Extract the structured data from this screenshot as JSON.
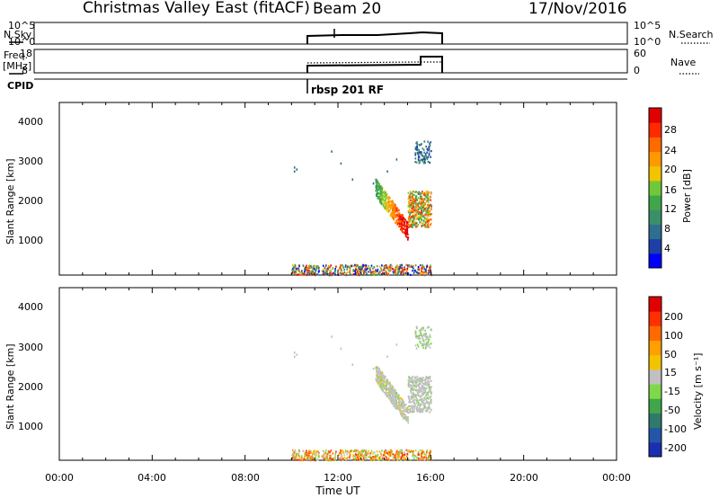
{
  "header": {
    "site": "Christmas Valley East (fitACF)",
    "beam": "Beam 20",
    "date": "17/Nov/2016"
  },
  "noise_panel": {
    "left_label": "N.Sky",
    "right_label": "N.Search",
    "ticks_left": [
      "10^5",
      "10^0"
    ],
    "ticks_right": [
      "10^5",
      "10^0"
    ]
  },
  "freq_panel": {
    "left_label_top": "Freq.",
    "left_label_unit": "[MHz]",
    "right_label": "Nave",
    "ticks_left": [
      "18",
      "8"
    ],
    "ticks_right": [
      "60",
      "0"
    ]
  },
  "cpid": {
    "label": "CPID",
    "program": "rbsp 201 RF"
  },
  "power_panel": {
    "ylabel": "Slant Range [km]",
    "yticks": [
      "4000",
      "3000",
      "2000",
      "1000"
    ],
    "colorbar_label": "Power [dB]",
    "colorbar_ticks": [
      "28",
      "24",
      "20",
      "16",
      "12",
      "8",
      "4"
    ],
    "colors": [
      "#0000ff",
      "#1e3fa6",
      "#2f6e8e",
      "#3a8f6a",
      "#3fa64a",
      "#6ec83a",
      "#f2c400",
      "#ff9900",
      "#ff6a00",
      "#ff2a00",
      "#e00000"
    ]
  },
  "velocity_panel": {
    "ylabel": "Slant Range [km]",
    "yticks": [
      "4000",
      "3000",
      "2000",
      "1000"
    ],
    "colorbar_label": "Velocity [m s⁻¹]",
    "colorbar_ticks": [
      "200",
      "100",
      "50",
      "15",
      "-15",
      "-50",
      "-100",
      "-200"
    ],
    "colors": [
      "#1a2fb0",
      "#2456a8",
      "#2f7a6a",
      "#3fa64a",
      "#7ed84a",
      "#c0c0c0",
      "#f2c400",
      "#ff9f00",
      "#ff6a00",
      "#ff3000",
      "#e00000"
    ]
  },
  "xaxis": {
    "label": "Time UT",
    "ticks": [
      "00:00",
      "04:00",
      "08:00",
      "12:00",
      "16:00",
      "20:00",
      "00:00"
    ]
  },
  "chart_data": [
    {
      "type": "line",
      "title": "N.Sky / N.Search",
      "x_range_hours": [
        10,
        16
      ],
      "series": [
        {
          "name": "N.Sky",
          "values": [
            1.6,
            1.6,
            1.7,
            1.7,
            1.8,
            1.9,
            2.1,
            2.1
          ]
        }
      ]
    },
    {
      "type": "line",
      "title": "Freq. / Nave",
      "x_range_hours": [
        10,
        16
      ],
      "series": [
        {
          "name": "Freq.",
          "x": [
            10,
            15.2,
            15.2,
            16
          ],
          "values": [
            10.5,
            10.6,
            13.5,
            13.5
          ]
        },
        {
          "name": "Nave",
          "x": [
            10,
            15.2,
            15.2,
            16
          ],
          "values": [
            28,
            30,
            30,
            30
          ]
        }
      ]
    },
    {
      "type": "heatmap",
      "title": "Power",
      "xlabel": "Time UT",
      "ylabel": "Slant Range [km]",
      "xlim": [
        0,
        24
      ],
      "ylim": [
        180,
        4500
      ],
      "cbar_range": [
        0,
        32
      ],
      "active_time_hours": [
        10,
        16
      ]
    },
    {
      "type": "heatmap",
      "title": "Velocity",
      "xlabel": "Time UT",
      "ylabel": "Slant Range [km]",
      "xlim": [
        0,
        24
      ],
      "ylim": [
        180,
        4500
      ],
      "cbar_range": [
        -250,
        250
      ],
      "active_time_hours": [
        10,
        16
      ]
    }
  ]
}
